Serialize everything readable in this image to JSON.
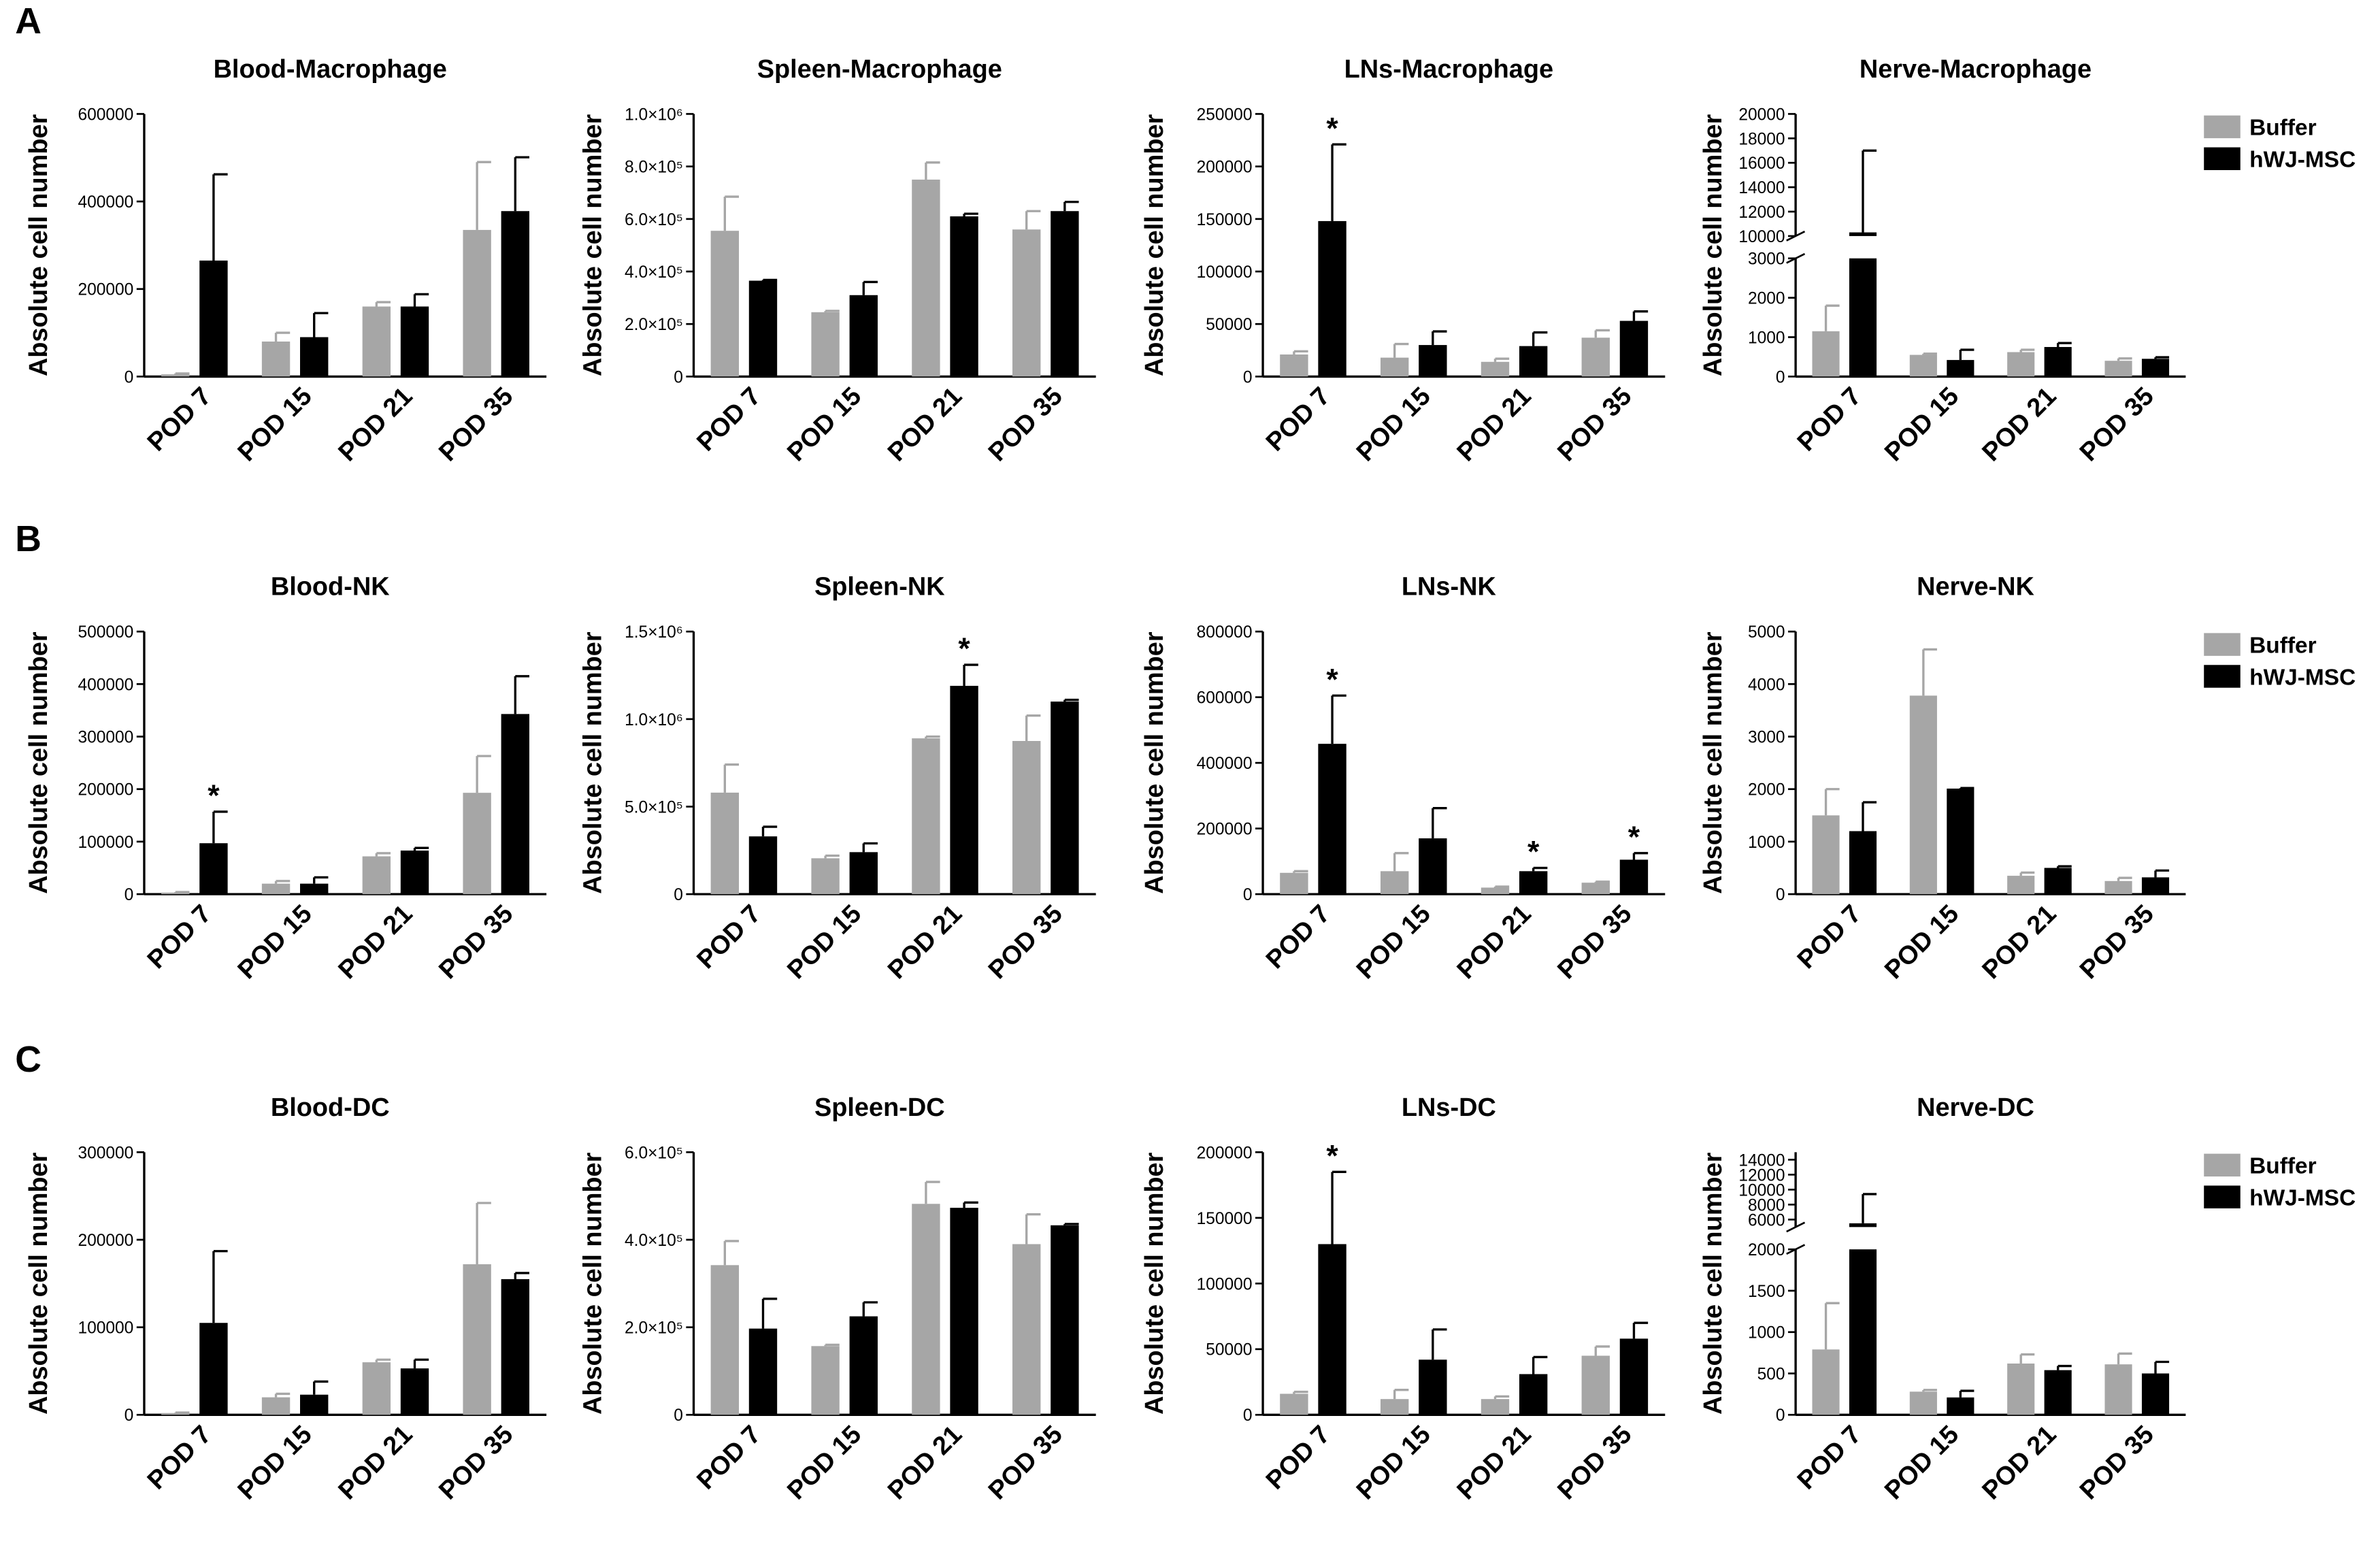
{
  "panel_labels": [
    "A",
    "B",
    "C"
  ],
  "chart_data": [
    {
      "type": "bar",
      "title": "Blood-Macrophage",
      "ylabel": "Absolute cell number",
      "categories": [
        "POD 7",
        "POD 15",
        "POD 21",
        "POD 35"
      ],
      "ylim": [
        0,
        600000
      ],
      "yticks": [
        0,
        200000,
        400000,
        600000
      ],
      "series": [
        {
          "name": "Buffer",
          "color": "#a6a6a6",
          "values": [
            5000,
            80000,
            160000,
            335000
          ],
          "errors": [
            2000,
            20000,
            10000,
            155000
          ]
        },
        {
          "name": "hWJ-MSC",
          "color": "#000000",
          "values": [
            265000,
            90000,
            160000,
            378000
          ],
          "errors": [
            197000,
            55000,
            28000,
            123000
          ]
        }
      ]
    },
    {
      "type": "bar",
      "title": "Spleen-Macrophage",
      "ylabel": "Absolute cell number",
      "categories": [
        "POD 7",
        "POD 15",
        "POD 21",
        "POD 35"
      ],
      "ylim": [
        0,
        1000000
      ],
      "yticks": [
        0,
        {
          "value": 200000,
          "label": "2.0×10⁵"
        },
        {
          "value": 400000,
          "label": "4.0×10⁵"
        },
        {
          "value": 600000,
          "label": "6.0×10⁵"
        },
        {
          "value": 800000,
          "label": "8.0×10⁵"
        },
        {
          "value": 1000000,
          "label": "1.0×10⁶"
        }
      ],
      "series": [
        {
          "name": "Buffer",
          "color": "#a6a6a6",
          "values": [
            555000,
            245000,
            750000,
            560000
          ],
          "errors": [
            130000,
            5000,
            65000,
            70000
          ]
        },
        {
          "name": "hWJ-MSC",
          "color": "#000000",
          "values": [
            365000,
            310000,
            610000,
            630000
          ],
          "errors": [
            3000,
            50000,
            10000,
            35000
          ]
        }
      ]
    },
    {
      "type": "bar",
      "title": "LNs-Macrophage",
      "ylabel": "Absolute cell number",
      "categories": [
        "POD 7",
        "POD 15",
        "POD 21",
        "POD 35"
      ],
      "ylim": [
        0,
        250000
      ],
      "yticks": [
        0,
        50000,
        100000,
        150000,
        200000,
        250000
      ],
      "series": [
        {
          "name": "Buffer",
          "color": "#a6a6a6",
          "values": [
            21000,
            18000,
            14000,
            37000
          ],
          "errors": [
            3000,
            13000,
            3000,
            7000
          ]
        },
        {
          "name": "hWJ-MSC",
          "color": "#000000",
          "values": [
            148000,
            30000,
            29000,
            53000
          ],
          "errors": [
            73000,
            13000,
            13000,
            9000
          ]
        }
      ],
      "annotations": [
        {
          "text": "*",
          "series": 1,
          "index": 0
        }
      ]
    },
    {
      "type": "broken-bar",
      "title": "Nerve-Macrophage",
      "ylabel": "Absolute cell number",
      "categories": [
        "POD 7",
        "POD 15",
        "POD 21",
        "POD 35"
      ],
      "legend": "right",
      "ysegments": [
        {
          "lim": [
            0,
            3000
          ],
          "ticks": [
            0,
            1000,
            2000,
            3000
          ]
        },
        {
          "lim": [
            10000,
            20000
          ],
          "ticks": [
            10000,
            12000,
            14000,
            16000,
            18000,
            20000
          ]
        }
      ],
      "series": [
        {
          "name": "Buffer",
          "color": "#a6a6a6",
          "values": [
            1150,
            550,
            620,
            400
          ],
          "errors": [
            650,
            30,
            60,
            60
          ]
        },
        {
          "name": "hWJ-MSC",
          "color": "#000000",
          "values": [
            10300,
            420,
            750,
            450
          ],
          "errors": [
            6700,
            260,
            100,
            40
          ]
        }
      ]
    },
    {
      "type": "bar",
      "title": "Blood-NK",
      "ylabel": "Absolute cell number",
      "categories": [
        "POD 7",
        "POD 15",
        "POD 21",
        "POD 35"
      ],
      "ylim": [
        0,
        500000
      ],
      "yticks": [
        0,
        100000,
        200000,
        300000,
        400000,
        500000
      ],
      "series": [
        {
          "name": "Buffer",
          "color": "#a6a6a6",
          "values": [
            3000,
            20000,
            72000,
            193000
          ],
          "errors": [
            1000,
            5000,
            6000,
            70000
          ]
        },
        {
          "name": "hWJ-MSC",
          "color": "#000000",
          "values": [
            97000,
            20000,
            83000,
            343000
          ],
          "errors": [
            60000,
            12000,
            5000,
            72000
          ]
        }
      ],
      "annotations": [
        {
          "text": "*",
          "series": 1,
          "index": 0
        }
      ]
    },
    {
      "type": "bar",
      "title": "Spleen-NK",
      "ylabel": "Absolute cell number",
      "categories": [
        "POD 7",
        "POD 15",
        "POD 21",
        "POD 35"
      ],
      "ylim": [
        0,
        1500000
      ],
      "yticks": [
        0,
        {
          "value": 500000,
          "label": "5.0×10⁵"
        },
        {
          "value": 1000000,
          "label": "1.0×10⁶"
        },
        {
          "value": 1500000,
          "label": "1.5×10⁶"
        }
      ],
      "series": [
        {
          "name": "Buffer",
          "color": "#a6a6a6",
          "values": [
            580000,
            205000,
            890000,
            875000
          ],
          "errors": [
            160000,
            15000,
            10000,
            145000
          ]
        },
        {
          "name": "hWJ-MSC",
          "color": "#000000",
          "values": [
            330000,
            240000,
            1190000,
            1100000
          ],
          "errors": [
            55000,
            50000,
            120000,
            10000
          ]
        }
      ],
      "annotations": [
        {
          "text": "*",
          "series": 1,
          "index": 2
        }
      ]
    },
    {
      "type": "bar",
      "title": "LNs-NK",
      "ylabel": "Absolute cell number",
      "categories": [
        "POD 7",
        "POD 15",
        "POD 21",
        "POD 35"
      ],
      "ylim": [
        0,
        800000
      ],
      "yticks": [
        0,
        200000,
        400000,
        600000,
        800000
      ],
      "series": [
        {
          "name": "Buffer",
          "color": "#a6a6a6",
          "values": [
            65000,
            70000,
            20000,
            35000
          ],
          "errors": [
            5000,
            55000,
            3000,
            3000
          ]
        },
        {
          "name": "hWJ-MSC",
          "color": "#000000",
          "values": [
            458000,
            170000,
            70000,
            105000
          ],
          "errors": [
            147000,
            92000,
            10000,
            20000
          ]
        }
      ],
      "annotations": [
        {
          "text": "*",
          "series": 1,
          "index": 0
        },
        {
          "text": "*",
          "series": 1,
          "index": 2
        },
        {
          "text": "*",
          "series": 1,
          "index": 3
        }
      ]
    },
    {
      "type": "bar",
      "title": "Nerve-NK",
      "ylabel": "Absolute cell number",
      "categories": [
        "POD 7",
        "POD 15",
        "POD 21",
        "POD 35"
      ],
      "legend": "right",
      "ylim": [
        0,
        5000
      ],
      "yticks": [
        0,
        1000,
        2000,
        3000,
        4000,
        5000
      ],
      "series": [
        {
          "name": "Buffer",
          "color": "#a6a6a6",
          "values": [
            1500,
            3780,
            350,
            250
          ],
          "errors": [
            500,
            880,
            60,
            60
          ]
        },
        {
          "name": "hWJ-MSC",
          "color": "#000000",
          "values": [
            1200,
            2010,
            500,
            320
          ],
          "errors": [
            550,
            10,
            30,
            130
          ]
        }
      ]
    },
    {
      "type": "bar",
      "title": "Blood-DC",
      "ylabel": "Absolute cell number",
      "categories": [
        "POD 7",
        "POD 15",
        "POD 21",
        "POD 35"
      ],
      "ylim": [
        0,
        300000
      ],
      "yticks": [
        0,
        100000,
        200000,
        300000
      ],
      "series": [
        {
          "name": "Buffer",
          "color": "#a6a6a6",
          "values": [
            2000,
            20000,
            60000,
            172000
          ],
          "errors": [
            500,
            4000,
            3000,
            70000
          ]
        },
        {
          "name": "hWJ-MSC",
          "color": "#000000",
          "values": [
            105000,
            23000,
            53000,
            155000
          ],
          "errors": [
            82000,
            15000,
            10000,
            7000
          ]
        }
      ]
    },
    {
      "type": "bar",
      "title": "Spleen-DC",
      "ylabel": "Absolute cell number",
      "categories": [
        "POD 7",
        "POD 15",
        "POD 21",
        "POD 35"
      ],
      "ylim": [
        0,
        600000
      ],
      "yticks": [
        0,
        {
          "value": 200000,
          "label": "2.0×10⁵"
        },
        {
          "value": 400000,
          "label": "4.0×10⁵"
        },
        {
          "value": 600000,
          "label": "6.0×10⁵"
        }
      ],
      "series": [
        {
          "name": "Buffer",
          "color": "#a6a6a6",
          "values": [
            342000,
            157000,
            482000,
            390000
          ],
          "errors": [
            55000,
            3000,
            50000,
            68000
          ]
        },
        {
          "name": "hWJ-MSC",
          "color": "#000000",
          "values": [
            197000,
            225000,
            473000,
            433000
          ],
          "errors": [
            68000,
            32000,
            12000,
            3000
          ]
        }
      ]
    },
    {
      "type": "bar",
      "title": "LNs-DC",
      "ylabel": "Absolute cell number",
      "categories": [
        "POD 7",
        "POD 15",
        "POD 21",
        "POD 35"
      ],
      "ylim": [
        0,
        200000
      ],
      "yticks": [
        0,
        50000,
        100000,
        150000,
        200000
      ],
      "series": [
        {
          "name": "Buffer",
          "color": "#a6a6a6",
          "values": [
            16000,
            12000,
            12000,
            45000
          ],
          "errors": [
            1500,
            7000,
            2000,
            7000
          ]
        },
        {
          "name": "hWJ-MSC",
          "color": "#000000",
          "values": [
            130000,
            42000,
            31000,
            58000
          ],
          "errors": [
            55000,
            23000,
            13000,
            12000
          ]
        }
      ],
      "annotations": [
        {
          "text": "*",
          "series": 1,
          "index": 0
        }
      ]
    },
    {
      "type": "broken-bar",
      "title": "Nerve-DC",
      "ylabel": "Absolute cell number",
      "categories": [
        "POD 7",
        "POD 15",
        "POD 21",
        "POD 35"
      ],
      "legend": "right",
      "ysegments": [
        {
          "lim": [
            0,
            2000
          ],
          "ticks": [
            0,
            500,
            1000,
            1500,
            2000
          ]
        },
        {
          "lim": [
            5000,
            15000
          ],
          "ticks": [
            6000,
            8000,
            10000,
            12000,
            14000
          ]
        }
      ],
      "series": [
        {
          "name": "Buffer",
          "color": "#a6a6a6",
          "values": [
            790,
            280,
            620,
            610
          ],
          "errors": [
            560,
            20,
            110,
            130
          ]
        },
        {
          "name": "hWJ-MSC",
          "color": "#000000",
          "values": [
            5500,
            210,
            540,
            500
          ],
          "errors": [
            3900,
            80,
            50,
            140
          ]
        }
      ]
    }
  ]
}
